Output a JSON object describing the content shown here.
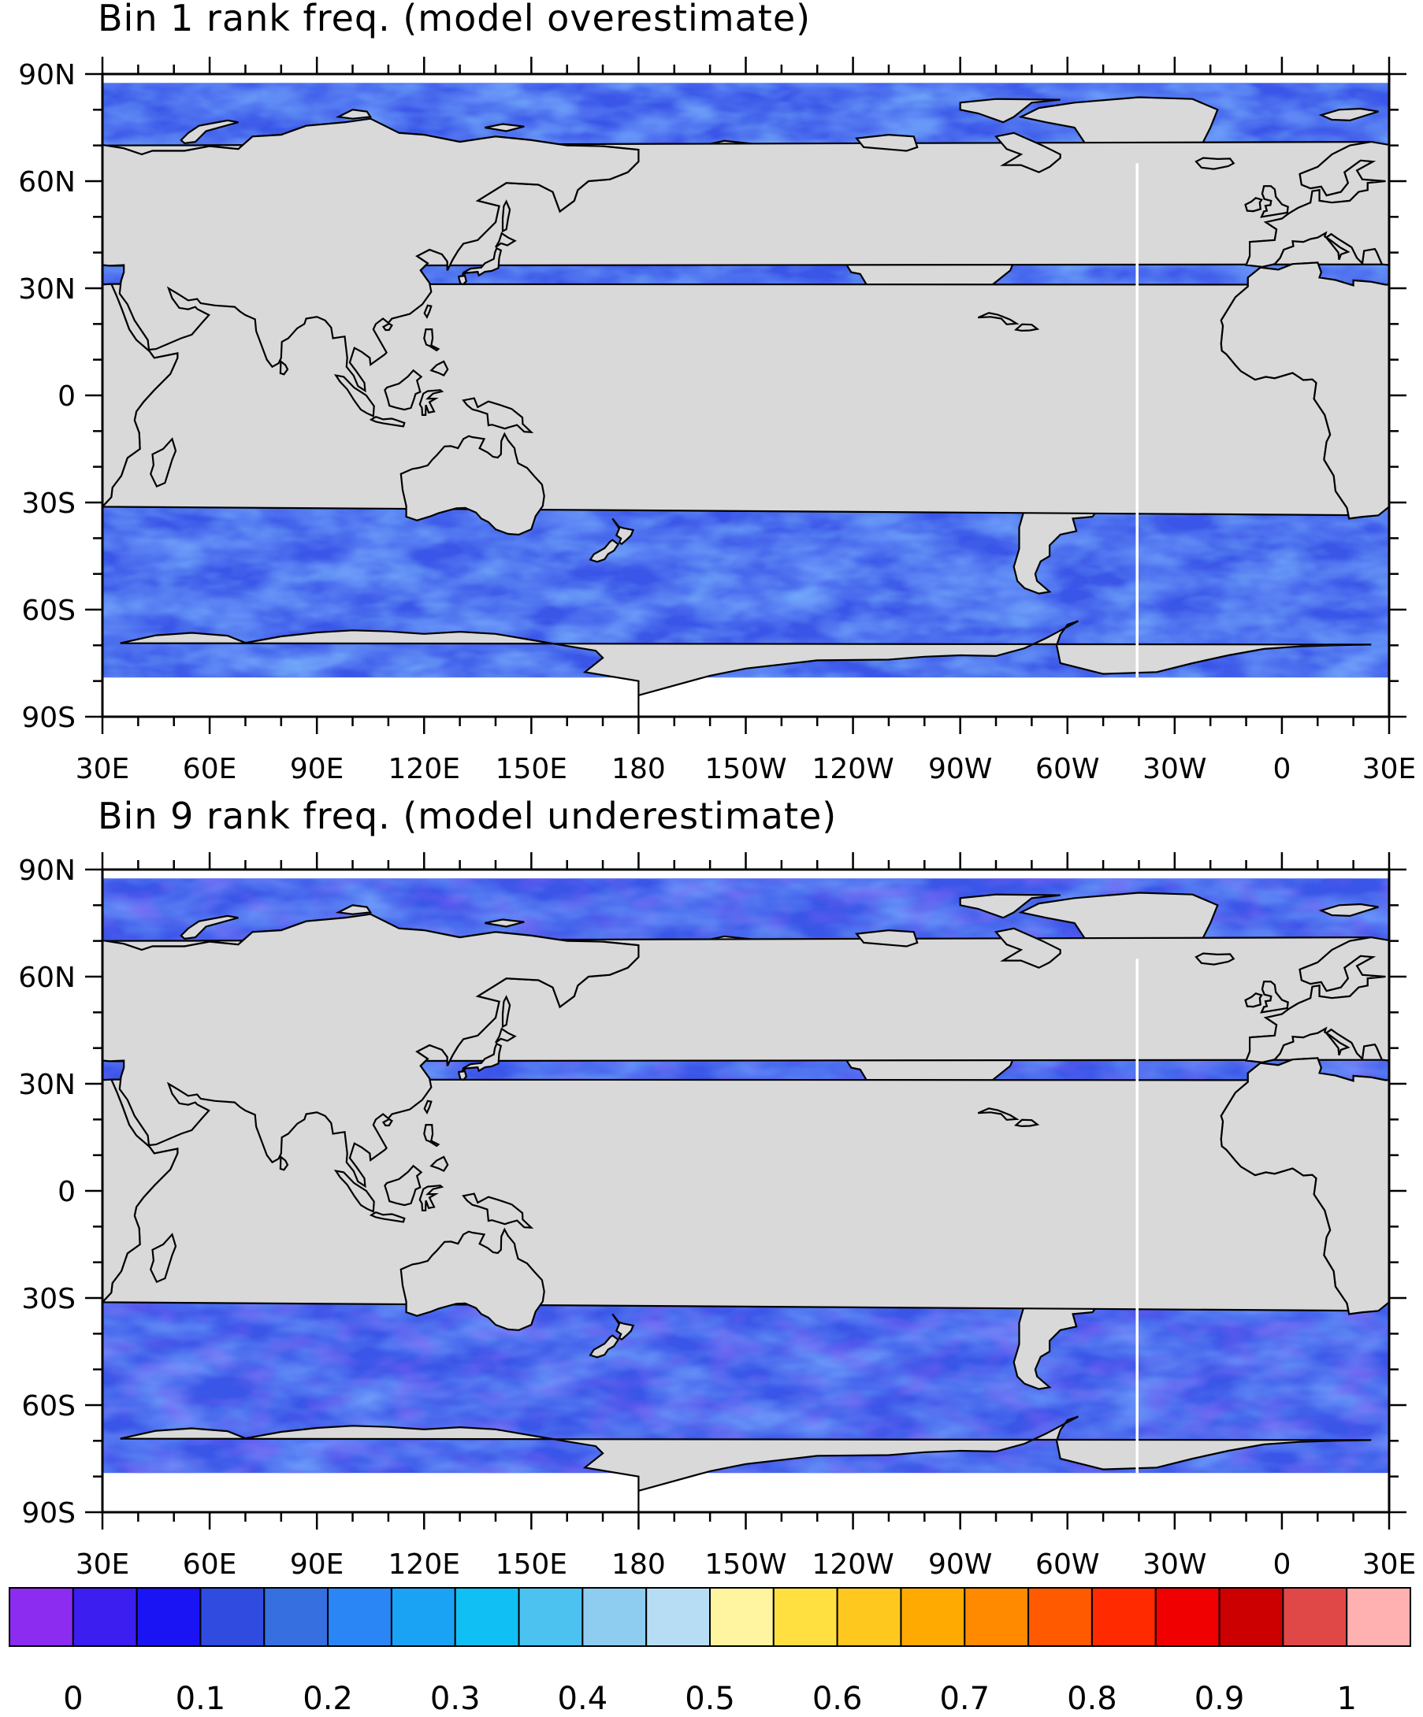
{
  "panels": [
    {
      "id": "bin1",
      "title": "Bin 1 rank freq. (model overestimate)",
      "mean_value": 0.15
    },
    {
      "id": "bin9",
      "title": "Bin 9 rank freq. (model underestimate)",
      "mean_value": 0.16
    }
  ],
  "map": {
    "projection": "cylindrical equidistant",
    "lon_range": [
      30,
      390
    ],
    "lat_range": [
      -90,
      90
    ],
    "lon_tick_labels": [
      "30E",
      "60E",
      "90E",
      "120E",
      "150E",
      "180",
      "150W",
      "120W",
      "90W",
      "60W",
      "30W",
      "0",
      "30E"
    ],
    "lat_tick_labels": [
      "90N",
      "60N",
      "30N",
      "0",
      "30S",
      "60S",
      "90S"
    ],
    "land_color": "#d9d9d9",
    "coastline_color": "#000000"
  },
  "colorbar": {
    "colors": [
      "#8b2cf0",
      "#3c1ef0",
      "#1a14f5",
      "#2f4be0",
      "#356fe0",
      "#2a86f5",
      "#1aa2f5",
      "#10c0f5",
      "#4cc2f0",
      "#8fcdf0",
      "#b7ddf5",
      "#fff5a0",
      "#ffe040",
      "#ffc81e",
      "#ffaa00",
      "#ff8a00",
      "#ff5a00",
      "#ff2a00",
      "#f00000",
      "#cc0000",
      "#e04848",
      "#ffb0b0"
    ],
    "tick_labels": [
      "0",
      "0.1",
      "0.2",
      "0.3",
      "0.4",
      "0.5",
      "0.6",
      "0.7",
      "0.8",
      "0.9",
      "1"
    ],
    "range": [
      0,
      1.1
    ]
  }
}
